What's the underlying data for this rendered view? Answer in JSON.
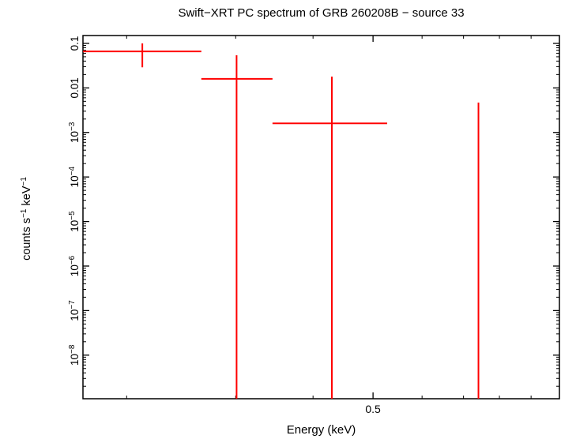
{
  "chart_data": {
    "type": "scatter",
    "title": "Swift−XRT PC spectrum of GRB 260208B − source 33",
    "xlabel": "Energy (keV)",
    "ylabel": "counts s^−1^ keV^−1^",
    "xscale": "log",
    "yscale": "log",
    "xlim": [
      0.17,
      1.0
    ],
    "ylim": [
      1.05e-09,
      0.15
    ],
    "grid": false,
    "legend": "none",
    "series_color": "#ff0000",
    "axis_color": "#000000",
    "xticks": [
      {
        "v": 0.2,
        "major": false
      },
      {
        "v": 0.3,
        "major": false
      },
      {
        "v": 0.4,
        "major": false
      },
      {
        "v": 0.5,
        "major": true,
        "label": "0.5"
      },
      {
        "v": 0.6,
        "major": false
      },
      {
        "v": 0.7,
        "major": false
      },
      {
        "v": 0.8,
        "major": false
      },
      {
        "v": 0.9,
        "major": false
      },
      {
        "v": 1.0,
        "major": false
      }
    ],
    "yticks": [
      {
        "v": 0.1,
        "label": "0.1"
      },
      {
        "v": 0.01,
        "label": "0.01"
      },
      {
        "v": 0.001,
        "label": "10^−3^"
      },
      {
        "v": 0.0001,
        "label": "10^−4^"
      },
      {
        "v": 1e-05,
        "label": "10^−5^"
      },
      {
        "v": 1e-06,
        "label": "10^−6^"
      },
      {
        "v": 1e-07,
        "label": "10^−7^"
      },
      {
        "v": 1e-08,
        "label": "10^−8^"
      }
    ],
    "points": [
      {
        "x": 0.212,
        "xmin": 0.17,
        "xmax": 0.264,
        "y": 0.066,
        "yhi": 0.1,
        "ylo": 0.029
      },
      {
        "x": 0.301,
        "xmin": 0.264,
        "xmax": 0.344,
        "y": 0.016,
        "yhi": 0.054,
        "ylo": null
      },
      {
        "x": 0.429,
        "xmin": 0.344,
        "xmax": 0.527,
        "y": 0.0016,
        "yhi": 0.018,
        "ylo": null
      },
      {
        "x": 0.74,
        "xmin": 0.74,
        "xmax": 0.74,
        "y": null,
        "yhi": 0.0047,
        "ylo": null
      }
    ]
  }
}
